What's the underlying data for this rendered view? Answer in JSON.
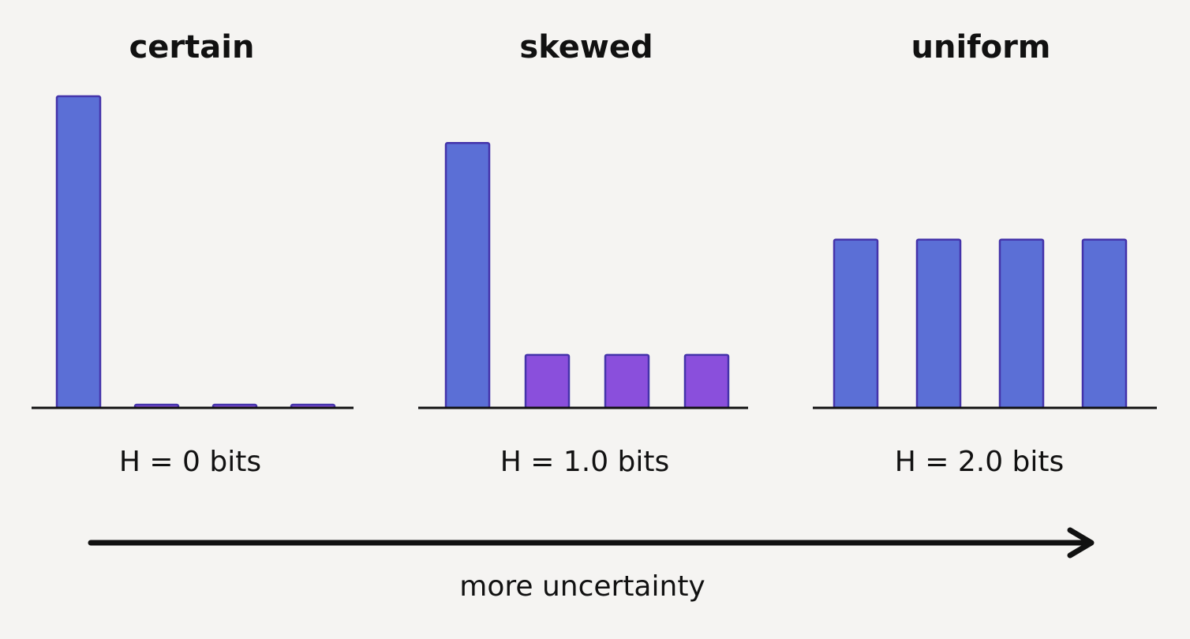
{
  "chart_data": [
    {
      "type": "bar",
      "title": "certain",
      "values": [
        1,
        0.01,
        0.01,
        0.01
      ],
      "colors": [
        "#5b6fd6",
        "#8a4fdc",
        "#8a4fdc",
        "#8a4fdc"
      ],
      "ylim": [
        0,
        1
      ],
      "annotation": "H = 0 bits"
    },
    {
      "type": "bar",
      "title": "skewed",
      "values": [
        0.85,
        0.17,
        0.17,
        0.17
      ],
      "colors": [
        "#5b6fd6",
        "#8a4fdc",
        "#8a4fdc",
        "#8a4fdc"
      ],
      "ylim": [
        0,
        1
      ],
      "annotation": "H = 1.0 bits"
    },
    {
      "type": "bar",
      "title": "uniform",
      "values": [
        0.54,
        0.54,
        0.54,
        0.54
      ],
      "colors": [
        "#5b6fd6",
        "#5b6fd6",
        "#5b6fd6",
        "#5b6fd6"
      ],
      "ylim": [
        0,
        1
      ],
      "annotation": "H = 2.0 bits"
    }
  ],
  "arrow_label": "more uncertainty"
}
